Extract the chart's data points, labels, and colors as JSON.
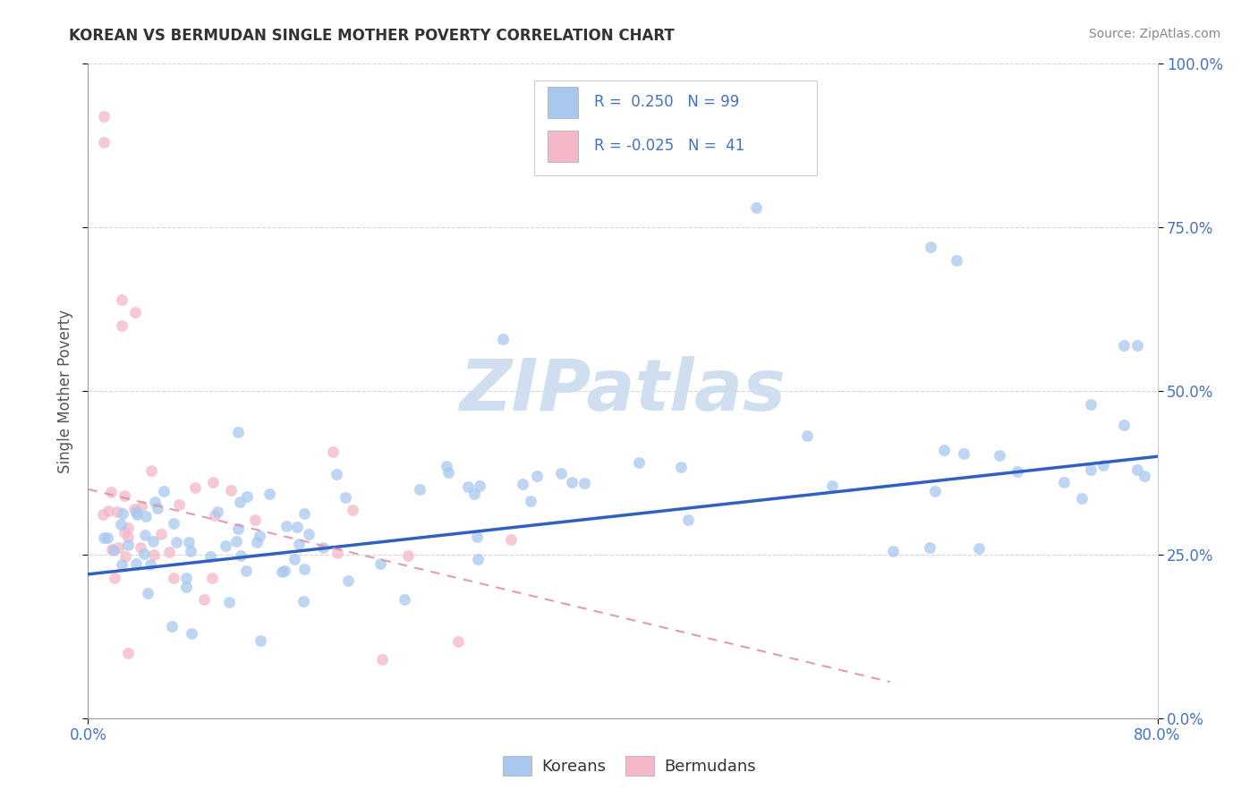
{
  "title": "KOREAN VS BERMUDAN SINGLE MOTHER POVERTY CORRELATION CHART",
  "source": "Source: ZipAtlas.com",
  "ylabel": "Single Mother Poverty",
  "korean_R": 0.25,
  "korean_N": 99,
  "bermudan_R": -0.025,
  "bermudan_N": 41,
  "korean_color": "#a8c8f0",
  "bermudan_color": "#f4b8c8",
  "korean_line_color": "#3060c0",
  "bermudan_line_color": "#e090a8",
  "xlim": [
    0.0,
    0.8
  ],
  "ylim": [
    0.0,
    1.0
  ],
  "yticks": [
    0.0,
    0.25,
    0.5,
    0.75,
    1.0
  ],
  "xticks": [
    0.0,
    0.8
  ],
  "watermark_color": "#d0dff0",
  "grid_color": "#cccccc",
  "title_color": "#333333",
  "source_color": "#888888",
  "tick_label_color": "#4472c4",
  "ylabel_color": "#555555",
  "legend_text_color": "#333333",
  "legend_border_color": "#cccccc"
}
